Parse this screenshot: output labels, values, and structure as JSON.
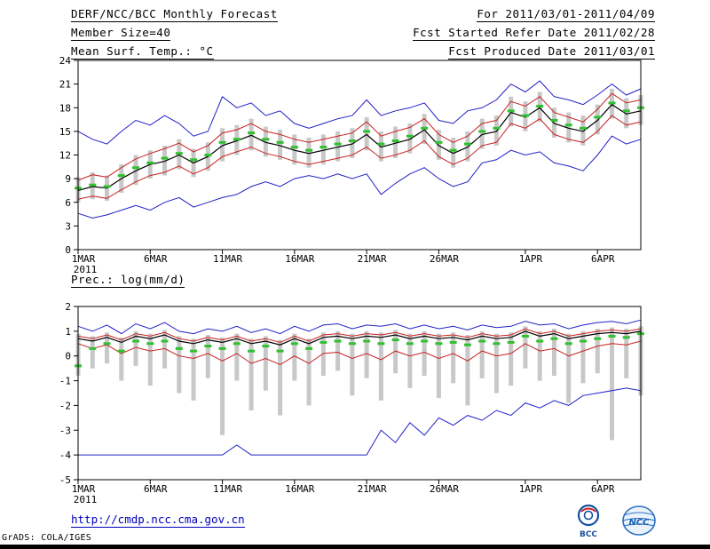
{
  "header": {
    "title": "DERF/NCC/BCC Monthly Forecast",
    "member_size": "Member Size=40",
    "for_range": "For 2011/03/01-2011/04/09",
    "fcst_started": "Fcst Started Refer Date 2011/02/28",
    "fcst_produced": "Fcst Produced Date 2011/03/01"
  },
  "footer": {
    "url": "http://cmdp.ncc.cma.gov.cn",
    "credit": "GrADS: COLA/IGES",
    "logos": [
      {
        "label": "BCC"
      },
      {
        "label": "NCC"
      }
    ]
  },
  "colors": {
    "blue": "#2020c8",
    "red": "#c82020",
    "black": "#000000",
    "green": "#30c030",
    "gray_bar": "#c8c8c8",
    "link": "#0000bb"
  },
  "chart_data": [
    {
      "type": "line",
      "title": "Mean Surf. Temp.: °C",
      "ylim": [
        0,
        24
      ],
      "yticks": [
        0,
        3,
        6,
        9,
        12,
        15,
        18,
        21,
        24
      ],
      "xticks": [
        {
          "i": 0,
          "label": "1MAR"
        },
        {
          "i": 5,
          "label": "6MAR"
        },
        {
          "i": 10,
          "label": "11MAR"
        },
        {
          "i": 15,
          "label": "16MAR"
        },
        {
          "i": 20,
          "label": "21MAR"
        },
        {
          "i": 25,
          "label": "26MAR"
        },
        {
          "i": 31,
          "label": "1APR"
        },
        {
          "i": 36,
          "label": "6APR"
        }
      ],
      "year_label": "2011",
      "n": 40,
      "series": [
        {
          "name": "ensemble-max",
          "color": "#2020c8",
          "width": 1,
          "values": [
            15.0,
            14.0,
            13.4,
            15.0,
            16.4,
            15.8,
            17.0,
            16.0,
            14.4,
            15.0,
            19.4,
            18.0,
            18.6,
            17.0,
            17.6,
            16.0,
            15.4,
            16.0,
            16.6,
            17.0,
            19.0,
            17.0,
            17.6,
            18.0,
            18.6,
            16.4,
            16.0,
            17.6,
            18.0,
            19.0,
            21.0,
            20.0,
            21.4,
            19.4,
            19.0,
            18.4,
            19.6,
            21.0,
            19.6,
            20.4
          ]
        },
        {
          "name": "upper-quartile",
          "color": "#c82020",
          "width": 1,
          "values": [
            8.8,
            9.5,
            9.2,
            10.4,
            11.5,
            12.2,
            12.8,
            13.5,
            12.4,
            13.2,
            14.8,
            15.2,
            16.0,
            15.0,
            14.6,
            14.0,
            13.6,
            14.0,
            14.4,
            14.8,
            16.2,
            14.4,
            15.0,
            15.5,
            16.6,
            14.6,
            13.6,
            14.4,
            16.0,
            16.4,
            18.8,
            18.2,
            19.4,
            17.4,
            16.8,
            16.2,
            17.8,
            19.8,
            18.6,
            19.0
          ]
        },
        {
          "name": "ensemble-mean",
          "color": "#000000",
          "width": 1.2,
          "values": [
            7.5,
            8.0,
            7.8,
            9.0,
            10.0,
            10.8,
            11.2,
            12.0,
            11.0,
            11.8,
            13.2,
            13.8,
            14.5,
            13.6,
            13.2,
            12.6,
            12.2,
            12.6,
            13.0,
            13.4,
            14.6,
            13.0,
            13.5,
            14.0,
            15.2,
            13.2,
            12.2,
            13.0,
            14.6,
            15.0,
            17.4,
            16.8,
            18.0,
            16.0,
            15.4,
            15.0,
            16.4,
            18.4,
            17.2,
            17.6
          ]
        },
        {
          "name": "lower-quartile",
          "color": "#c82020",
          "width": 1,
          "values": [
            6.4,
            6.8,
            6.5,
            7.6,
            8.6,
            9.4,
            9.8,
            10.6,
            9.6,
            10.4,
            11.8,
            12.4,
            13.0,
            12.2,
            11.8,
            11.2,
            10.8,
            11.2,
            11.6,
            12.0,
            13.0,
            11.6,
            12.0,
            12.6,
            13.8,
            11.8,
            10.8,
            11.6,
            13.2,
            13.6,
            16.0,
            15.4,
            16.6,
            14.6,
            14.0,
            13.6,
            15.0,
            17.0,
            15.8,
            16.2
          ]
        },
        {
          "name": "ensemble-min",
          "color": "#2020c8",
          "width": 1,
          "values": [
            4.6,
            4.0,
            4.4,
            5.0,
            5.6,
            5.0,
            6.0,
            6.6,
            5.4,
            6.0,
            6.6,
            7.0,
            8.0,
            8.6,
            8.0,
            9.0,
            9.4,
            9.0,
            9.6,
            9.0,
            9.6,
            7.0,
            8.4,
            9.6,
            10.4,
            9.0,
            8.0,
            8.6,
            11.0,
            11.4,
            12.6,
            12.0,
            12.4,
            11.0,
            10.6,
            10.0,
            12.0,
            14.4,
            13.4,
            14.0
          ]
        }
      ],
      "green_marks": {
        "name": "median-marks",
        "color": "#30c030",
        "values": [
          7.8,
          8.2,
          8.0,
          9.4,
          10.4,
          11.0,
          11.6,
          12.2,
          11.4,
          12.0,
          13.6,
          14.0,
          14.8,
          14.0,
          13.6,
          13.0,
          12.6,
          13.0,
          13.4,
          13.8,
          15.0,
          13.4,
          13.8,
          14.4,
          15.4,
          13.6,
          12.6,
          13.4,
          15.0,
          15.4,
          17.6,
          17.0,
          18.2,
          16.4,
          15.8,
          15.4,
          16.8,
          18.6,
          17.6,
          18.0
        ]
      },
      "bars": {
        "name": "ensemble-spread-bars",
        "color": "#c8c8c8",
        "ranges": [
          [
            6.0,
            9.2
          ],
          [
            6.4,
            9.8
          ],
          [
            6.2,
            9.4
          ],
          [
            7.2,
            10.8
          ],
          [
            8.2,
            12.0
          ],
          [
            9.0,
            12.6
          ],
          [
            9.4,
            13.2
          ],
          [
            10.2,
            14.0
          ],
          [
            9.2,
            12.8
          ],
          [
            10.0,
            13.6
          ],
          [
            11.2,
            15.4
          ],
          [
            12.0,
            15.8
          ],
          [
            12.6,
            16.6
          ],
          [
            11.8,
            15.6
          ],
          [
            11.4,
            15.2
          ],
          [
            10.8,
            14.6
          ],
          [
            10.4,
            14.2
          ],
          [
            10.8,
            14.6
          ],
          [
            11.2,
            15.0
          ],
          [
            11.6,
            15.4
          ],
          [
            12.6,
            16.8
          ],
          [
            11.2,
            15.0
          ],
          [
            11.6,
            15.6
          ],
          [
            12.2,
            16.0
          ],
          [
            13.4,
            17.2
          ],
          [
            11.4,
            15.2
          ],
          [
            10.4,
            14.2
          ],
          [
            11.2,
            15.0
          ],
          [
            12.8,
            16.6
          ],
          [
            13.2,
            17.0
          ],
          [
            15.6,
            19.4
          ],
          [
            15.0,
            18.8
          ],
          [
            16.2,
            20.0
          ],
          [
            14.2,
            18.0
          ],
          [
            13.6,
            17.4
          ],
          [
            13.2,
            17.0
          ],
          [
            14.6,
            18.4
          ],
          [
            16.6,
            20.4
          ],
          [
            15.4,
            19.2
          ],
          [
            15.8,
            19.6
          ]
        ]
      }
    },
    {
      "type": "line",
      "title": "Prec.: log(mm/d)",
      "ylim": [
        -5,
        2
      ],
      "yticks": [
        -5,
        -4,
        -3,
        -2,
        -1,
        0,
        1,
        2
      ],
      "xticks": [
        {
          "i": 0,
          "label": "1MAR"
        },
        {
          "i": 5,
          "label": "6MAR"
        },
        {
          "i": 10,
          "label": "11MAR"
        },
        {
          "i": 15,
          "label": "16MAR"
        },
        {
          "i": 20,
          "label": "21MAR"
        },
        {
          "i": 25,
          "label": "26MAR"
        },
        {
          "i": 31,
          "label": "1APR"
        },
        {
          "i": 36,
          "label": "6APR"
        }
      ],
      "year_label": "2011",
      "n": 40,
      "series": [
        {
          "name": "ensemble-max",
          "color": "#2020c8",
          "width": 1,
          "values": [
            1.2,
            1.0,
            1.25,
            0.9,
            1.3,
            1.1,
            1.35,
            1.0,
            0.9,
            1.1,
            1.0,
            1.2,
            0.95,
            1.1,
            0.9,
            1.2,
            1.0,
            1.25,
            1.3,
            1.1,
            1.25,
            1.2,
            1.3,
            1.1,
            1.25,
            1.1,
            1.2,
            1.05,
            1.25,
            1.15,
            1.2,
            1.4,
            1.25,
            1.3,
            1.1,
            1.25,
            1.35,
            1.4,
            1.3,
            1.45
          ]
        },
        {
          "name": "upper-quartile",
          "color": "#c82020",
          "width": 1,
          "values": [
            0.8,
            0.7,
            0.85,
            0.65,
            0.9,
            0.8,
            0.95,
            0.7,
            0.6,
            0.75,
            0.65,
            0.8,
            0.6,
            0.7,
            0.55,
            0.8,
            0.6,
            0.85,
            0.9,
            0.8,
            0.9,
            0.85,
            0.95,
            0.8,
            0.9,
            0.8,
            0.85,
            0.75,
            0.9,
            0.8,
            0.85,
            1.1,
            0.9,
            1.0,
            0.8,
            0.9,
            1.0,
            1.05,
            1.0,
            1.1
          ]
        },
        {
          "name": "ensemble-mean",
          "color": "#000000",
          "width": 1.2,
          "values": [
            0.7,
            0.6,
            0.75,
            0.55,
            0.8,
            0.7,
            0.85,
            0.6,
            0.5,
            0.65,
            0.55,
            0.7,
            0.5,
            0.6,
            0.45,
            0.7,
            0.5,
            0.75,
            0.8,
            0.7,
            0.8,
            0.75,
            0.85,
            0.7,
            0.8,
            0.7,
            0.75,
            0.65,
            0.8,
            0.7,
            0.75,
            1.0,
            0.8,
            0.9,
            0.7,
            0.8,
            0.9,
            0.95,
            0.9,
            1.0
          ]
        },
        {
          "name": "lower-quartile",
          "color": "#c82020",
          "width": 1,
          "values": [
            0.5,
            0.3,
            0.45,
            0.1,
            0.35,
            0.2,
            0.3,
            0.0,
            -0.1,
            0.1,
            -0.2,
            0.1,
            -0.3,
            -0.1,
            -0.35,
            0.0,
            -0.3,
            0.1,
            0.15,
            -0.1,
            0.1,
            -0.15,
            0.2,
            0.0,
            0.15,
            -0.1,
            0.1,
            -0.2,
            0.2,
            0.0,
            0.1,
            0.5,
            0.2,
            0.3,
            0.0,
            0.2,
            0.4,
            0.5,
            0.45,
            0.6
          ]
        },
        {
          "name": "ensemble-min",
          "color": "#2020c8",
          "width": 1,
          "values": [
            -4,
            -4,
            -4,
            -4,
            -4,
            -4,
            -4,
            -4,
            -4,
            -4,
            -4,
            -3.6,
            -4,
            -4,
            -4,
            -4,
            -4,
            -4,
            -4,
            -4,
            -4,
            -3.0,
            -3.5,
            -2.7,
            -3.2,
            -2.5,
            -2.8,
            -2.4,
            -2.6,
            -2.2,
            -2.4,
            -1.9,
            -2.1,
            -1.8,
            -2.0,
            -1.6,
            -1.5,
            -1.4,
            -1.3,
            -1.4
          ]
        }
      ],
      "green_marks": {
        "name": "median-marks",
        "color": "#30c030",
        "values": [
          -0.4,
          0.3,
          0.5,
          0.2,
          0.6,
          0.5,
          0.6,
          0.3,
          0.2,
          0.4,
          0.3,
          0.5,
          0.2,
          0.4,
          0.2,
          0.5,
          0.3,
          0.55,
          0.6,
          0.5,
          0.6,
          0.5,
          0.65,
          0.5,
          0.6,
          0.5,
          0.55,
          0.45,
          0.6,
          0.5,
          0.55,
          0.8,
          0.6,
          0.7,
          0.5,
          0.6,
          0.7,
          0.8,
          0.75,
          0.9
        ]
      },
      "bars": {
        "name": "ensemble-spread-bars",
        "color": "#c8c8c8",
        "ranges": [
          [
            -0.8,
            0.9
          ],
          [
            -0.5,
            0.8
          ],
          [
            -0.3,
            0.95
          ],
          [
            -1.0,
            0.75
          ],
          [
            -0.4,
            1.0
          ],
          [
            -1.2,
            0.9
          ],
          [
            -0.5,
            1.05
          ],
          [
            -1.5,
            0.8
          ],
          [
            -1.8,
            0.7
          ],
          [
            -0.9,
            0.85
          ],
          [
            -3.2,
            0.75
          ],
          [
            -1.0,
            0.9
          ],
          [
            -2.2,
            0.7
          ],
          [
            -1.4,
            0.8
          ],
          [
            -2.4,
            0.65
          ],
          [
            -1.0,
            0.9
          ],
          [
            -2.0,
            0.7
          ],
          [
            -0.8,
            0.95
          ],
          [
            -0.6,
            1.0
          ],
          [
            -1.6,
            0.9
          ],
          [
            -0.9,
            1.0
          ],
          [
            -1.8,
            0.95
          ],
          [
            -0.7,
            1.05
          ],
          [
            -1.3,
            0.9
          ],
          [
            -0.8,
            1.0
          ],
          [
            -1.7,
            0.9
          ],
          [
            -1.1,
            0.95
          ],
          [
            -2.0,
            0.85
          ],
          [
            -0.9,
            1.0
          ],
          [
            -1.5,
            0.9
          ],
          [
            -1.2,
            0.95
          ],
          [
            -0.5,
            1.2
          ],
          [
            -1.0,
            1.0
          ],
          [
            -0.8,
            1.1
          ],
          [
            -1.9,
            0.9
          ],
          [
            -1.1,
            1.0
          ],
          [
            -0.7,
            1.1
          ],
          [
            -3.4,
            1.15
          ],
          [
            -0.9,
            1.1
          ],
          [
            -1.6,
            1.2
          ]
        ]
      }
    }
  ]
}
